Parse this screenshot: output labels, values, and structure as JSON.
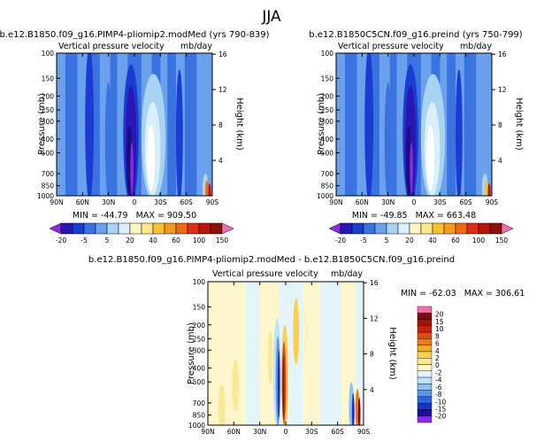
{
  "figure": {
    "title": "JJA"
  },
  "colors": {
    "scale_a": [
      "#8a2be2",
      "#2a16b5",
      "#1c3bd0",
      "#3a73e0",
      "#6aa0ec",
      "#a9d3f2",
      "#d9f0fa",
      "#fdf6c3",
      "#fce88a",
      "#f9c32e",
      "#f49a1c",
      "#ee6a14",
      "#de2f16",
      "#b8160d",
      "#8c0f0a",
      "#f26bb3"
    ],
    "scale_b": [
      "#8a2be2",
      "#1a0f99",
      "#1834c6",
      "#2e66dd",
      "#5d96ea",
      "#8cc1f2",
      "#bde3f8",
      "#e3f5fb",
      "#fdf7cb",
      "#fbe897",
      "#f8cf4e",
      "#f4aa20",
      "#ee7b15",
      "#e14b14",
      "#c8240f",
      "#a3110b",
      "#7d0d0c",
      "#f26bb3"
    ]
  },
  "chart_data": [
    {
      "type": "heatmap",
      "title": "b.e12.B1850.f09_g16.PIMP4-pliomip2.modMed (yrs 790-839)",
      "subtitle": "Vertical pressure velocity",
      "units": "mb/day",
      "xlabel": "",
      "ylabel": "Pressure (mb)",
      "y2label": "Height (km)",
      "x_ticks": [
        "90N",
        "60N",
        "30N",
        "0",
        "30S",
        "60S",
        "90S"
      ],
      "y_ticks": [
        100,
        150,
        200,
        250,
        300,
        400,
        500,
        700,
        850,
        1000
      ],
      "y2_ticks": [
        4,
        8,
        12,
        16
      ],
      "stats": "MIN = -44.79   MAX = 909.50",
      "colorbar_labels": [
        "-20",
        "-5",
        "5",
        "20",
        "40",
        "60",
        "100",
        "150"
      ],
      "contour_levels": [
        -20,
        -15,
        -10,
        -5,
        -2,
        2,
        5,
        10,
        20,
        30,
        40,
        50,
        60,
        80,
        100,
        150
      ]
    },
    {
      "type": "heatmap",
      "title": "b.e12.B1850C5CN.f09_g16.preind (yrs 750-799)",
      "subtitle": "Vertical pressure velocity",
      "units": "mb/day",
      "xlabel": "",
      "ylabel": "Pressure (mb)",
      "y2label": "Height (km)",
      "x_ticks": [
        "90N",
        "60N",
        "30N",
        "0",
        "30S",
        "60S",
        "90S"
      ],
      "y_ticks": [
        100,
        150,
        200,
        250,
        300,
        400,
        500,
        700,
        850,
        1000
      ],
      "y2_ticks": [
        4,
        8,
        12,
        16
      ],
      "stats": "MIN = -49.85   MAX = 663.48",
      "colorbar_labels": [
        "-20",
        "-5",
        "5",
        "20",
        "40",
        "60",
        "100",
        "150"
      ],
      "contour_levels": [
        -20,
        -15,
        -10,
        -5,
        -2,
        2,
        5,
        10,
        20,
        30,
        40,
        50,
        60,
        80,
        100,
        150
      ]
    },
    {
      "type": "heatmap",
      "title": "b.e12.B1850.f09_g16.PIMP4-pliomip2.modMed - b.e12.B1850C5CN.f09_g16.preind",
      "subtitle": "Vertical pressure velocity",
      "units": "mb/day",
      "xlabel": "",
      "ylabel": "Pressure (mb)",
      "y2label": "Height (km)",
      "x_ticks": [
        "90N",
        "60N",
        "30N",
        "0",
        "30S",
        "60S",
        "90S"
      ],
      "y_ticks": [
        100,
        150,
        200,
        250,
        300,
        400,
        500,
        700,
        850,
        1000
      ],
      "y2_ticks": [
        4,
        8,
        12,
        16
      ],
      "stats": "MIN = -62.03   MAX = 306.61",
      "colorbar_labels": [
        "20",
        "15",
        "10",
        "8",
        "6",
        "4",
        "2",
        "0",
        "-2",
        "-4",
        "-6",
        "-8",
        "-10",
        "-15",
        "-20"
      ],
      "contour_levels": [
        -20,
        -15,
        -10,
        -8,
        -6,
        -4,
        -2,
        0,
        2,
        4,
        6,
        8,
        10,
        15,
        20
      ]
    }
  ]
}
